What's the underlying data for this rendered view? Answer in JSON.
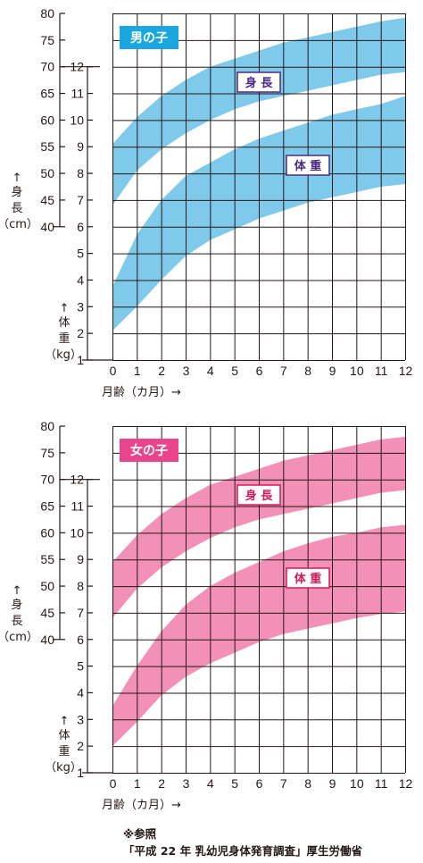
{
  "chart_data": [
    {
      "type": "area",
      "title": "男の子",
      "color": "#7fc9eb",
      "title_bg": "#1aa7df",
      "label_color": "#4b2a86",
      "x_ticks": [
        "0",
        "1",
        "2",
        "3",
        "4",
        "5",
        "6",
        "7",
        "8",
        "9",
        "10",
        "11",
        "12"
      ],
      "xlabel": "月齢（カ月）→",
      "height_ticks": [
        "80",
        "75",
        "70",
        "65",
        "60",
        "55",
        "50",
        "45",
        "40"
      ],
      "height_label": [
        "↑",
        "身",
        "長",
        "（cm）"
      ],
      "weight_ticks": [
        "12",
        "11",
        "10",
        "9",
        "8",
        "7",
        "6",
        "5",
        "4",
        "3",
        "2",
        "1"
      ],
      "weight_label": [
        "↑",
        "体",
        "重",
        "（kg）"
      ],
      "height_label_text": "身 長",
      "weight_label_text": "体 重",
      "height_ylim": [
        40,
        80
      ],
      "weight_ylim": [
        1,
        12
      ],
      "grid": true,
      "series": [
        {
          "name": "身 長",
          "axis": "height",
          "x": [
            0,
            1,
            2,
            3,
            4,
            5,
            6,
            7,
            8,
            9,
            10,
            11,
            12
          ],
          "upper": [
            55.5,
            60.5,
            64.5,
            67.5,
            70,
            71.5,
            73,
            74.5,
            75.5,
            76.5,
            77.5,
            78.5,
            79.2
          ],
          "lower": [
            44,
            50.5,
            54.5,
            57.5,
            60,
            62,
            63.5,
            64.5,
            65.5,
            66.5,
            67.5,
            68.5,
            69
          ]
        },
        {
          "name": "体 重",
          "axis": "weight",
          "x": [
            0,
            1,
            2,
            3,
            4,
            5,
            6,
            7,
            8,
            9,
            10,
            11,
            12
          ],
          "upper": [
            3.75,
            5.7,
            7.0,
            7.9,
            8.4,
            8.9,
            9.3,
            9.6,
            9.9,
            10.2,
            10.4,
            10.6,
            10.9
          ],
          "lower": [
            2.1,
            3.0,
            4.0,
            4.9,
            5.5,
            5.9,
            6.3,
            6.6,
            6.9,
            7.1,
            7.3,
            7.5,
            7.6
          ]
        }
      ]
    },
    {
      "type": "area",
      "title": "女の子",
      "color": "#f390b8",
      "title_bg": "#e8458a",
      "label_color": "#d7185f",
      "x_ticks": [
        "0",
        "1",
        "2",
        "3",
        "4",
        "5",
        "6",
        "7",
        "8",
        "9",
        "10",
        "11",
        "12"
      ],
      "xlabel": "月齢（カ月）→",
      "height_ticks": [
        "80",
        "75",
        "70",
        "65",
        "60",
        "55",
        "50",
        "45",
        "40"
      ],
      "height_label": [
        "↑",
        "身",
        "長",
        "（cm）"
      ],
      "weight_ticks": [
        "12",
        "11",
        "10",
        "9",
        "8",
        "7",
        "6",
        "5",
        "4",
        "3",
        "2",
        "1"
      ],
      "weight_label": [
        "↑",
        "体",
        "重",
        "（kg）"
      ],
      "height_label_text": "身 長",
      "weight_label_text": "体 重",
      "height_ylim": [
        40,
        80
      ],
      "weight_ylim": [
        1,
        12
      ],
      "grid": true,
      "series": [
        {
          "name": "身 長",
          "axis": "height",
          "x": [
            0,
            1,
            2,
            3,
            4,
            5,
            6,
            7,
            8,
            9,
            10,
            11,
            12
          ],
          "upper": [
            54.5,
            59.5,
            63.5,
            66.5,
            69,
            70.5,
            72,
            73.5,
            74.5,
            75.5,
            76.5,
            77.5,
            78
          ],
          "lower": [
            44,
            49.5,
            53.5,
            56.5,
            59,
            61,
            62.5,
            63.5,
            64.5,
            65.5,
            66.5,
            67.5,
            68
          ]
        },
        {
          "name": "体 重",
          "axis": "weight",
          "x": [
            0,
            1,
            2,
            3,
            4,
            5,
            6,
            7,
            8,
            9,
            10,
            11,
            12
          ],
          "upper": [
            3.5,
            5.0,
            6.3,
            7.3,
            8.0,
            8.5,
            8.9,
            9.3,
            9.6,
            9.85,
            10.0,
            10.2,
            10.3
          ],
          "lower": [
            2.0,
            2.9,
            3.9,
            4.6,
            5.1,
            5.5,
            5.9,
            6.2,
            6.4,
            6.6,
            6.8,
            6.95,
            7.05
          ]
        }
      ]
    }
  ],
  "source": {
    "line1": "※参照",
    "line2": "「平成 22 年 乳幼児身体発育調査」厚生労働省"
  }
}
